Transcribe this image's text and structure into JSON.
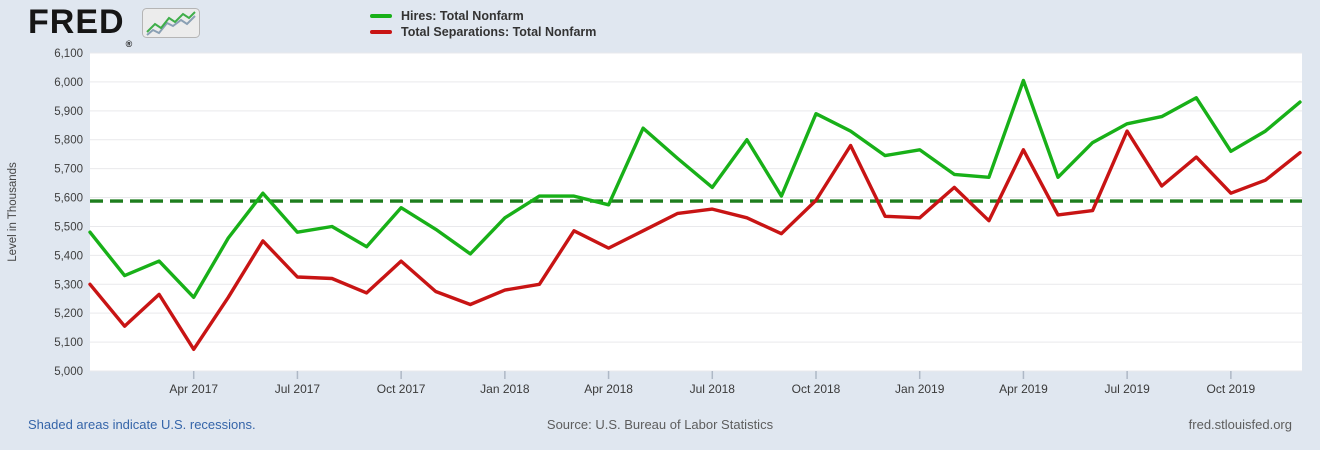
{
  "header": {
    "logo_text": "FRED",
    "registered_mark": "®"
  },
  "chart_data": {
    "type": "line",
    "title": "",
    "ylabel": "Level in Thousands",
    "ylim": [
      5000,
      6100
    ],
    "ytick_step": 100,
    "grid": "horizontal",
    "legend_position": "top-left",
    "months": [
      "Jan 2017",
      "Feb 2017",
      "Mar 2017",
      "Apr 2017",
      "May 2017",
      "Jun 2017",
      "Jul 2017",
      "Aug 2017",
      "Sep 2017",
      "Oct 2017",
      "Nov 2017",
      "Dec 2017",
      "Jan 2018",
      "Feb 2018",
      "Mar 2018",
      "Apr 2018",
      "May 2018",
      "Jun 2018",
      "Jul 2018",
      "Aug 2018",
      "Sep 2018",
      "Oct 2018",
      "Nov 2018",
      "Dec 2018",
      "Jan 2019",
      "Feb 2019",
      "Mar 2019",
      "Apr 2019",
      "May 2019",
      "Jun 2019",
      "Jul 2019",
      "Aug 2019",
      "Sep 2019",
      "Oct 2019",
      "Nov 2019",
      "Dec 2019"
    ],
    "x_ticks": [
      {
        "index": 3,
        "label": "Apr 2017"
      },
      {
        "index": 6,
        "label": "Jul 2017"
      },
      {
        "index": 9,
        "label": "Oct 2017"
      },
      {
        "index": 12,
        "label": "Jan 2018"
      },
      {
        "index": 15,
        "label": "Apr 2018"
      },
      {
        "index": 18,
        "label": "Jul 2018"
      },
      {
        "index": 21,
        "label": "Oct 2018"
      },
      {
        "index": 24,
        "label": "Jan 2019"
      },
      {
        "index": 27,
        "label": "Apr 2019"
      },
      {
        "index": 30,
        "label": "Jul 2019"
      },
      {
        "index": 33,
        "label": "Oct 2019"
      }
    ],
    "series": [
      {
        "name": "Hires: Total Nonfarm",
        "color": "#18b018",
        "values": [
          5480,
          5330,
          5380,
          5255,
          5460,
          5615,
          5480,
          5500,
          5430,
          5565,
          5490,
          5405,
          5530,
          5605,
          5605,
          5575,
          5840,
          5735,
          5635,
          5800,
          5605,
          5890,
          5830,
          5745,
          5765,
          5680,
          5670,
          6005,
          5670,
          5790,
          5855,
          5880,
          5945,
          5760,
          5830,
          5930
        ]
      },
      {
        "name": "Total Separations: Total Nonfarm",
        "color": "#c81414",
        "values": [
          5300,
          5155,
          5265,
          5075,
          5255,
          5450,
          5325,
          5320,
          5270,
          5380,
          5275,
          5230,
          5280,
          5300,
          5485,
          5425,
          5485,
          5545,
          5560,
          5530,
          5475,
          5590,
          5780,
          5535,
          5530,
          5635,
          5520,
          5765,
          5540,
          5555,
          5830,
          5640,
          5740,
          5615,
          5660,
          5755
        ]
      }
    ],
    "reference_line": {
      "value": 5588,
      "color": "#1e7e1e",
      "style": "dashed"
    }
  },
  "footer": {
    "recessions_note": "Shaded areas indicate U.S. recessions.",
    "source": "Source: U.S. Bureau of Labor Statistics",
    "site": "fred.stlouisfed.org"
  }
}
